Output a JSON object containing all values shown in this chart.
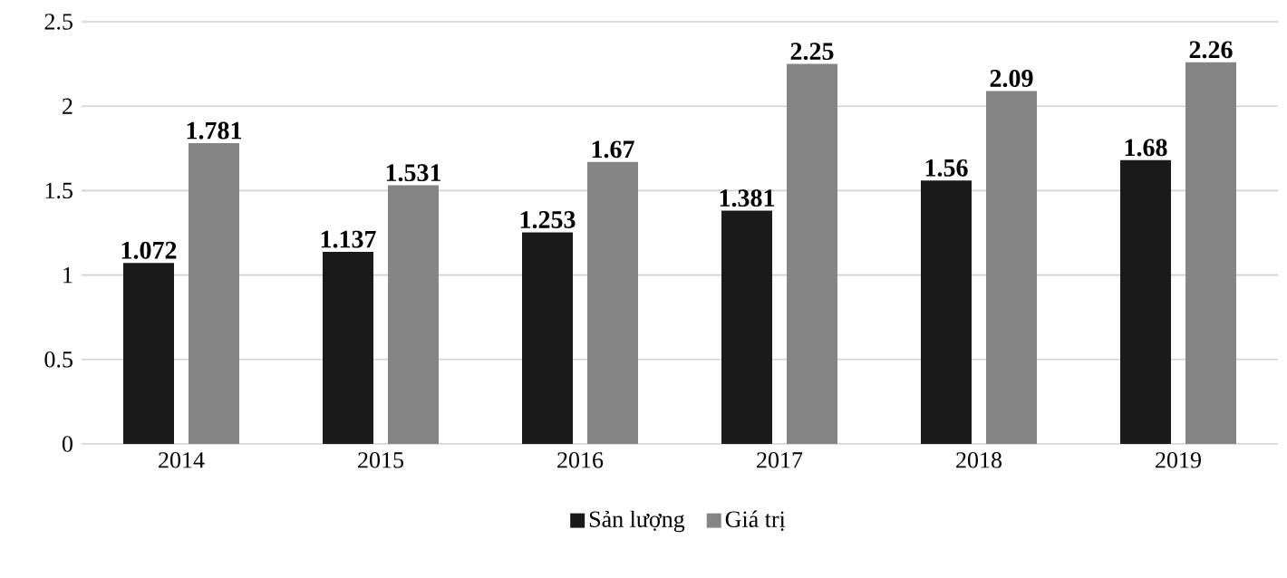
{
  "chart_data": {
    "type": "bar",
    "categories": [
      "2014",
      "2015",
      "2016",
      "2017",
      "2018",
      "2019"
    ],
    "series": [
      {
        "name": "Sản lượng",
        "color": "#1a1a1a",
        "values": [
          1.072,
          1.137,
          1.253,
          1.381,
          1.56,
          1.68
        ]
      },
      {
        "name": "Giá trị",
        "color": "#858585",
        "values": [
          1.781,
          1.531,
          1.67,
          2.25,
          2.09,
          2.26
        ]
      }
    ],
    "ylim": [
      0,
      2.5
    ],
    "yticks": [
      0,
      0.5,
      1,
      1.5,
      2,
      2.5
    ],
    "grid": "y",
    "legend": "bottom",
    "data_labels": true
  }
}
